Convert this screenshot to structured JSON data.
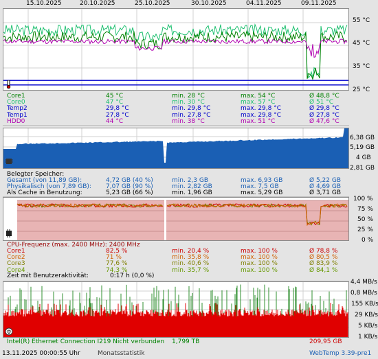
{
  "colors": {
    "green": "#008000",
    "green_light": "#1ec070",
    "blue": "#0000cc",
    "purple": "#b000b0",
    "mem_blue": "#1a5fb4",
    "cpu_red": "#cc0000",
    "cpu_fill": "#e8b4b4",
    "net_red": "#e00000",
    "net_green": "#2f8f2f",
    "text_blue": "#1a5fb4",
    "dark_red": "#990000"
  },
  "dates": [
    "15.10.2025",
    "20.10.2025",
    "25.10.2025",
    "30.10.2025",
    "04.11.2025",
    "09.11.2025"
  ],
  "temp_axis": [
    "55 °C",
    "45 °C",
    "35 °C",
    "25 °C"
  ],
  "temp_rows": [
    {
      "name": "Core1",
      "cur": "45 °C",
      "min": "min. 28 °C",
      "max": "max. 54 °C",
      "avg": "Ø 48,8 °C",
      "color": "#008000"
    },
    {
      "name": "Core0",
      "cur": "47 °C",
      "min": "min. 30 °C",
      "max": "max. 57 °C",
      "avg": "Ø 51 °C",
      "color": "#1ec070"
    },
    {
      "name": "Temp2",
      "cur": "29,8 °C",
      "min": "min. 29,8 °C",
      "max": "max. 29,8 °C",
      "avg": "Ø 29,8 °C",
      "color": "#0000cc"
    },
    {
      "name": "Temp1",
      "cur": "27,8 °C",
      "min": "min. 27,8 °C",
      "max": "max. 29,8 °C",
      "avg": "Ø 27,8 °C",
      "color": "#0000cc"
    },
    {
      "name": "HDD0",
      "cur": "44 °C",
      "min": "min. 38 °C",
      "max": "max. 51 °C",
      "avg": "Ø 47,6 °C",
      "color": "#b000b0"
    }
  ],
  "mem_axis": [
    "6,38 GB",
    "5,19 GB",
    "4 GB",
    "2,81 GB"
  ],
  "mem_header": "Belegter Speicher:",
  "mem_rows": [
    {
      "name": "Gesamt (von 11,89 GB):",
      "cur": "4,72 GB (40 %)",
      "min": "min. 2,3 GB",
      "max": "max. 6,93 GB",
      "avg": "Ø 5,22 GB",
      "color": "#1a5fb4"
    },
    {
      "name": "Physikalisch (von 7,89 GB):",
      "cur": "7,07 GB (90 %)",
      "min": "min. 2,82 GB",
      "max": "max. 7,5 GB",
      "avg": "Ø 4,69 GB",
      "color": "#1a5fb4"
    },
    {
      "name": "Als Cache in Benutzung:",
      "cur": "5,23 GB (66 %)",
      "min": "min. 1,96 GB",
      "max": "max. 5,29 GB",
      "avg": "Ø 3,71 GB",
      "color": "#000000"
    }
  ],
  "cpu_axis": [
    "100 %",
    "75 %",
    "50 %",
    "25 %",
    "0 %"
  ],
  "cpu_freq": "CPU-Frequenz (max. 2400 MHz): 2400 MHz",
  "cpu_rows": [
    {
      "name": "Core1",
      "cur": "82,5 %",
      "min": "min. 20,4 %",
      "max": "max. 100 %",
      "avg": "Ø 78,8 %",
      "color": "#cc0000"
    },
    {
      "name": "Core2",
      "cur": "71 %",
      "min": "min. 35,8 %",
      "max": "max. 100 %",
      "avg": "Ø 80,5 %",
      "color": "#d06000"
    },
    {
      "name": "Core3",
      "cur": "77,6 %",
      "min": "min. 40,6 %",
      "max": "max. 100 %",
      "avg": "Ø 83,9 %",
      "color": "#7f7f00"
    },
    {
      "name": "Core4",
      "cur": "74,3 %",
      "min": "min. 35,7 %",
      "max": "max. 100 %",
      "avg": "Ø 84,1 %",
      "color": "#669900"
    }
  ],
  "user_activity": {
    "label": "Zeit mit Benutzeraktivität:",
    "value": "0:17 h (0,0 %)"
  },
  "net_axis": [
    "4,4 MB/s",
    "0,8 MB/s",
    "155 KB/s",
    "29 KB/s",
    "5 KB/s",
    "1 KB/s"
  ],
  "net_row": {
    "name": "Intel(R) Ethernet Connection I219  Nicht verbunden",
    "value1": "1,799 TB",
    "value2": "209,95 GB"
  },
  "footer": {
    "timestamp": "13.11.2025 00:00:55 Uhr",
    "link": "Monatsstatistik",
    "version": "WebTemp 3.39-pre1"
  }
}
